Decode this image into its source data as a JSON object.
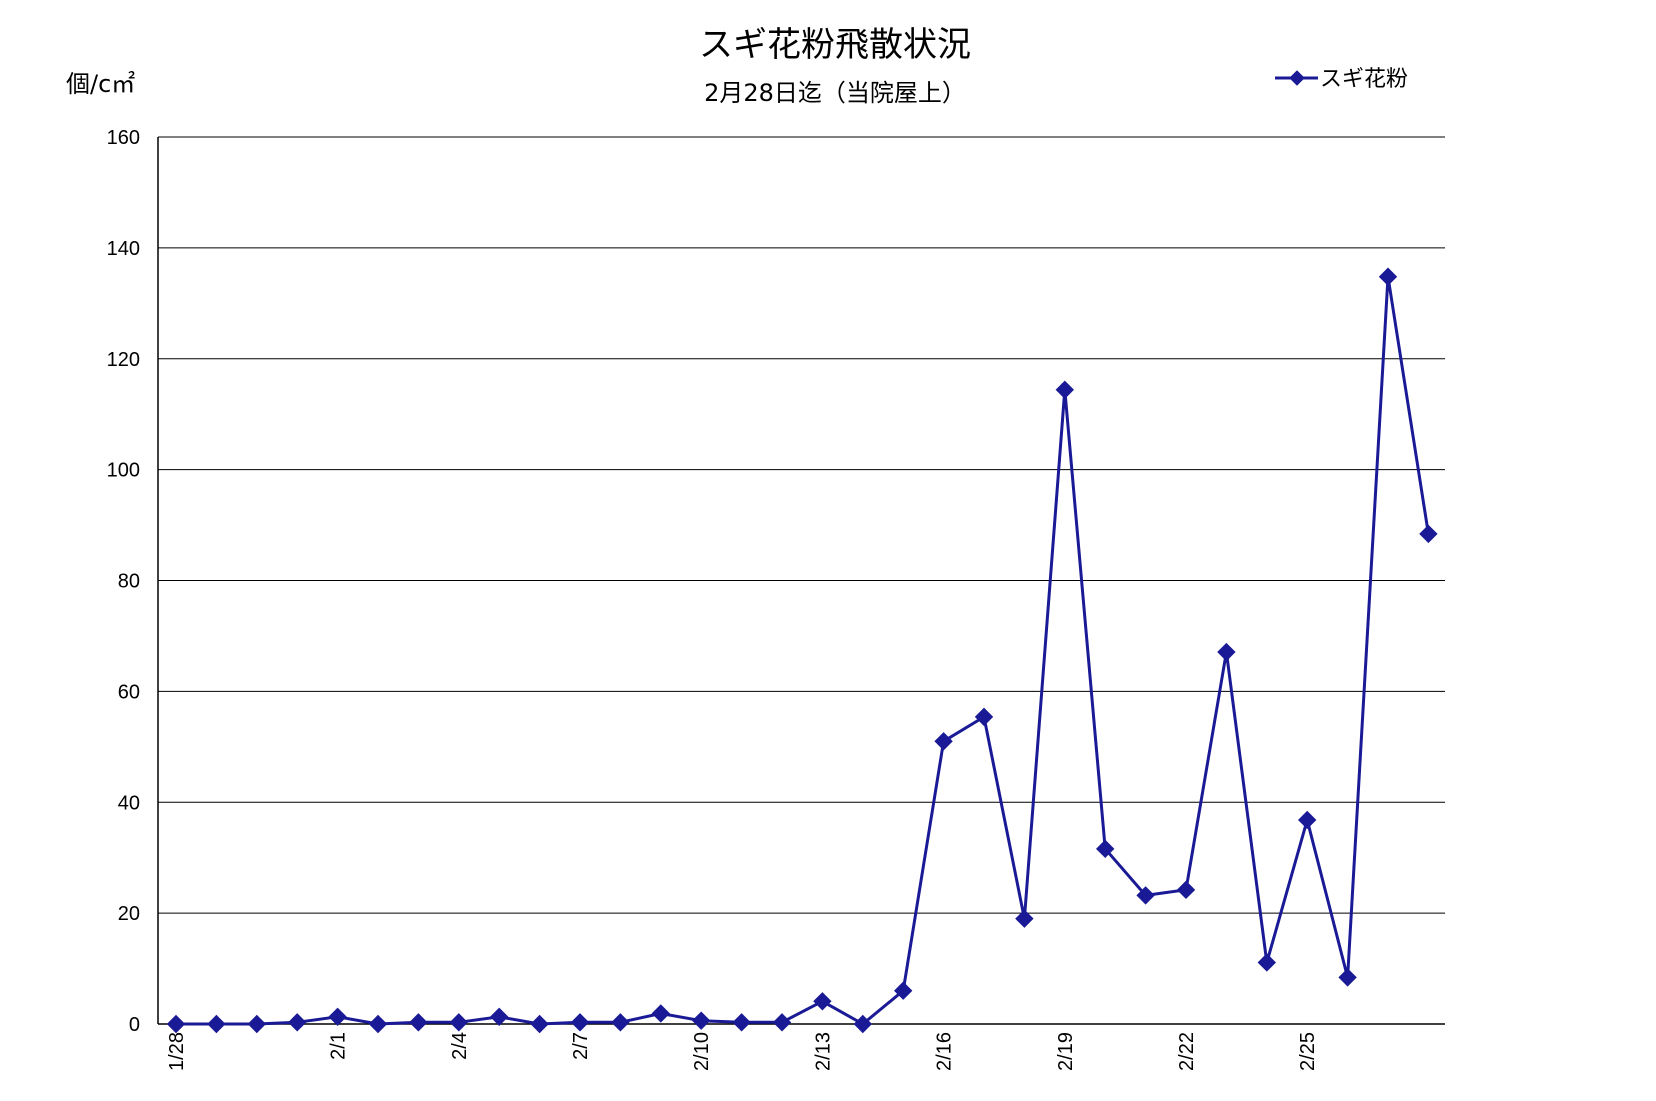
{
  "chart_data": {
    "type": "line",
    "title": "スギ花粉飛散状況",
    "subtitle": "2月28日迄（当院屋上）",
    "ylabel": "個/c㎡",
    "ylim": [
      0,
      160
    ],
    "yticks": [
      "0",
      "20",
      "40",
      "60",
      "80",
      "100",
      "120",
      "140",
      "160"
    ],
    "grid": true,
    "legend_position": "top-right",
    "categories": [
      "1/28",
      "1/29",
      "1/30",
      "1/31",
      "2/1",
      "2/2",
      "2/3",
      "2/4",
      "2/5",
      "2/6",
      "2/7",
      "2/8",
      "2/9",
      "2/10",
      "2/11",
      "2/12",
      "2/13",
      "2/14",
      "2/15",
      "2/16",
      "2/17",
      "2/18",
      "2/19",
      "2/20",
      "2/21",
      "2/22",
      "2/23",
      "2/24",
      "2/25",
      "2/26",
      "2/27",
      "2/28"
    ],
    "xtick_labels": [
      "1/28",
      "",
      "",
      "",
      "2/1",
      "",
      "",
      "2/4",
      "",
      "",
      "2/7",
      "",
      "",
      "2/10",
      "",
      "",
      "2/13",
      "",
      "",
      "2/16",
      "",
      "",
      "2/19",
      "",
      "",
      "2/22",
      "",
      "",
      "2/25",
      "",
      "",
      ""
    ],
    "series": [
      {
        "name": "スギ花粉",
        "color": "#1a1a96",
        "values": [
          0,
          0,
          0,
          0.3,
          1.3,
          0,
          0.3,
          0.3,
          1.3,
          0,
          0.3,
          0.3,
          1.9,
          0.6,
          0.3,
          0.3,
          4.1,
          0,
          6,
          51,
          55.4,
          19,
          114.4,
          31.6,
          23.2,
          24.2,
          67.1,
          11.1,
          36.8,
          8.4,
          134.8,
          88.4
        ]
      }
    ]
  }
}
